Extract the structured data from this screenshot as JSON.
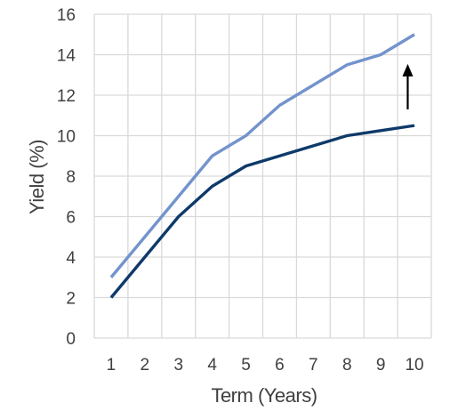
{
  "chart_data": {
    "type": "line",
    "x": [
      1,
      2,
      3,
      4,
      5,
      6,
      7,
      8,
      9,
      10
    ],
    "series": [
      {
        "values": [
          3,
          5,
          7,
          9,
          10,
          11.5,
          12.5,
          13.5,
          14,
          15
        ],
        "color": "#7393cc"
      },
      {
        "values": [
          2,
          4,
          6,
          7.5,
          8.5,
          9,
          9.5,
          10,
          10.25,
          10.5
        ],
        "color": "#0e3a6a"
      }
    ],
    "xlabel": "Term (Years)",
    "ylabel": "Yield (%)",
    "xlim": [
      0.5,
      10.5
    ],
    "ylim": [
      0,
      16
    ],
    "ytick_step": 2,
    "xticks": [
      "1",
      "2",
      "3",
      "4",
      "5",
      "6",
      "7",
      "8",
      "9",
      "10"
    ],
    "yticks": [
      "0",
      "2",
      "4",
      "6",
      "8",
      "10",
      "12",
      "14",
      "16"
    ],
    "grid": true,
    "annotation": {
      "type": "arrow-up",
      "x": 9.8,
      "y_from": 11.3,
      "y_to": 13.5,
      "color": "#000000"
    }
  }
}
